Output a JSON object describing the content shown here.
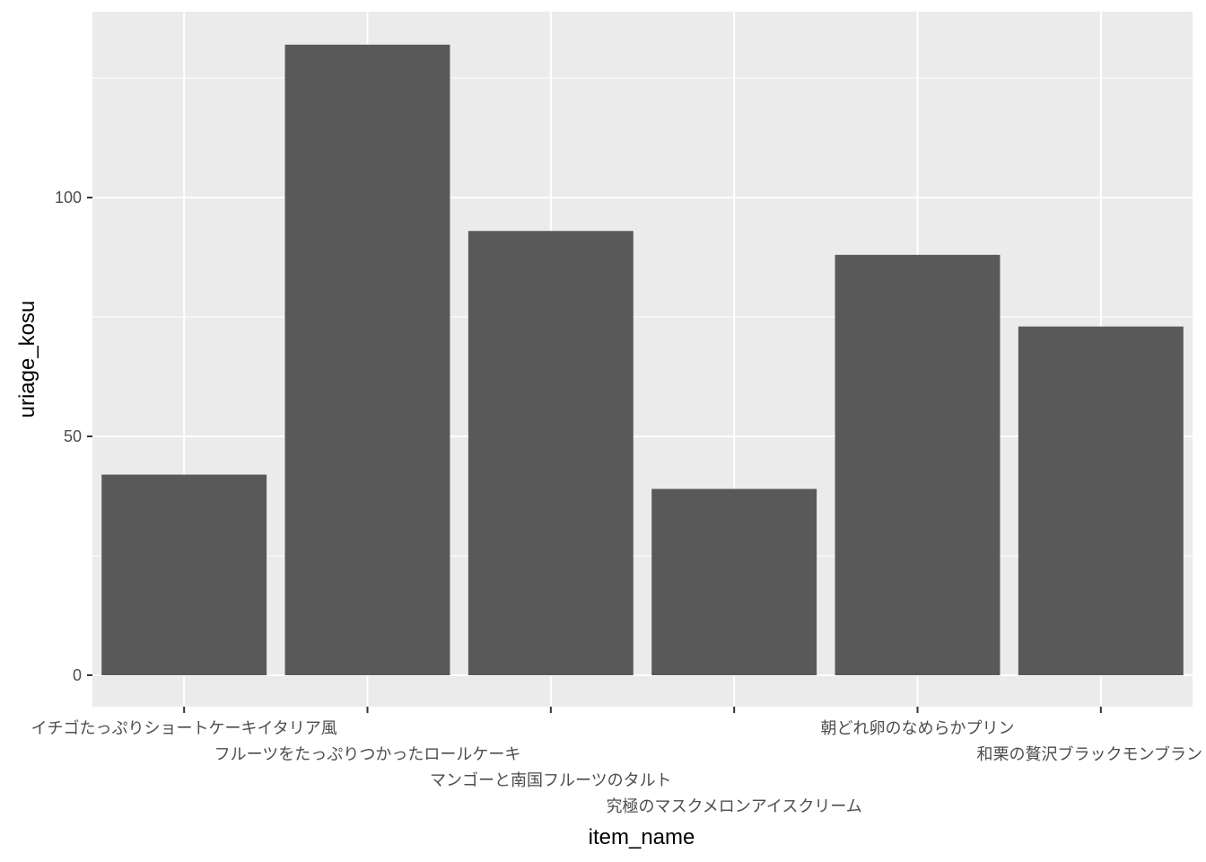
{
  "chart_data": {
    "type": "bar",
    "title": "",
    "xlabel": "item_name",
    "ylabel": "uriage_kosu",
    "categories": [
      "イチゴたっぷりショートケーキイタリア風",
      "フルーツをたっぷりつかったロールケーキ",
      "マンゴーと南国フルーツのタルト",
      "究極のマスクメロンアイスクリーム",
      "朝どれ卵のなめらかプリン",
      "和栗の贅沢ブラックモンブラン"
    ],
    "values": [
      42,
      132,
      93,
      39,
      88,
      73
    ],
    "ylim": [
      -6.6,
      138.6
    ],
    "yticks": [
      0,
      50,
      100
    ],
    "ytick_labels": [
      "0",
      "50",
      "100"
    ],
    "grid": true,
    "colors": {
      "panel": "#ebebeb",
      "grid": "#ffffff",
      "bar": "#595959",
      "tick": "#333333",
      "text": "#4d4d4d"
    }
  }
}
